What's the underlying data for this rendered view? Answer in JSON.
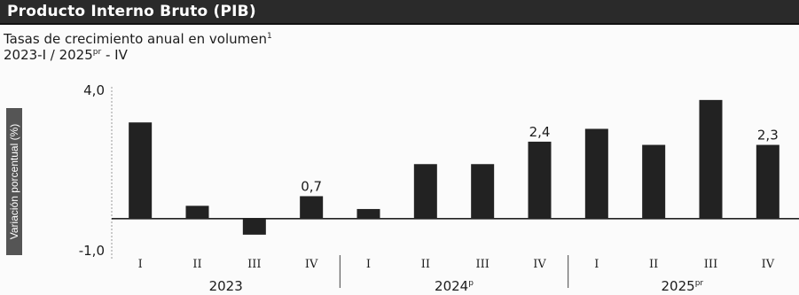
{
  "header": {
    "title": "Producto Interno Bruto (PIB)",
    "subtitle": "Tasas de crecimiento anual en volumen",
    "subtitle_sup": "1",
    "period_prefix": "2023-I / 2025",
    "period_sup": "pr",
    "period_suffix": " - IV"
  },
  "colors": {
    "bar": "#222222",
    "title_bg": "#2a2a2a",
    "axis": "#222222"
  },
  "chart_data": {
    "type": "bar",
    "ylabel": "Variación porcentual (%)",
    "ylim": [
      -1.0,
      4.0
    ],
    "yticks": [
      "4,0",
      "-1,0"
    ],
    "categories": [
      "I",
      "II",
      "III",
      "IV",
      "I",
      "II",
      "III",
      "IV",
      "I",
      "II",
      "III",
      "IV"
    ],
    "groups": [
      {
        "label": "2023",
        "sup": "",
        "count": 4
      },
      {
        "label": "2024",
        "sup": "p",
        "count": 4
      },
      {
        "label": "2025",
        "sup": "pr",
        "count": 4
      }
    ],
    "values": [
      3.0,
      0.4,
      -0.5,
      0.7,
      0.3,
      1.7,
      1.7,
      2.4,
      2.8,
      2.3,
      3.7,
      2.3
    ],
    "data_labels": [
      "",
      "",
      "",
      "0,7",
      "",
      "",
      "",
      "2,4",
      "",
      "",
      "",
      "2,3"
    ]
  }
}
